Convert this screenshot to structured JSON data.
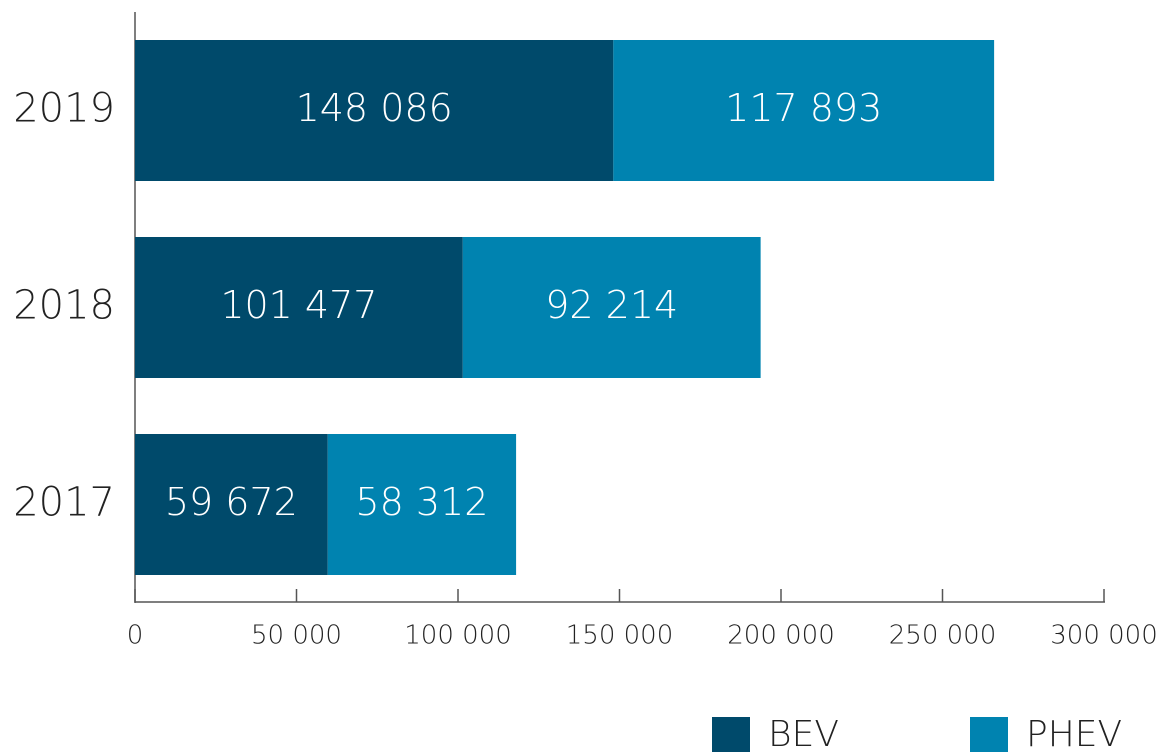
{
  "chart_data": {
    "type": "stacked-barh",
    "categories": [
      "2019",
      "2018",
      "2017"
    ],
    "series": [
      {
        "name": "BEV",
        "color": "#004a6b",
        "values": [
          148086,
          101477,
          59672
        ],
        "value_labels": [
          "148 086",
          "101 477",
          "59 672"
        ]
      },
      {
        "name": "PHEV",
        "color": "#0083b0",
        "values": [
          117893,
          92214,
          58312
        ],
        "value_labels": [
          "117 893",
          "92 214",
          "58 312"
        ]
      }
    ],
    "xlim": [
      0,
      300000
    ],
    "xticks": [
      0,
      {
        "value": 50000,
        "label": "50 000"
      },
      {
        "value": 100000,
        "label": "100 000"
      },
      {
        "value": 150000,
        "label": "150 000"
      },
      {
        "value": 200000,
        "label": "200 000"
      },
      {
        "value": 250000,
        "label": "250 000"
      },
      {
        "value": 300000,
        "label": "300 000"
      }
    ],
    "legend": "bottom-right"
  }
}
